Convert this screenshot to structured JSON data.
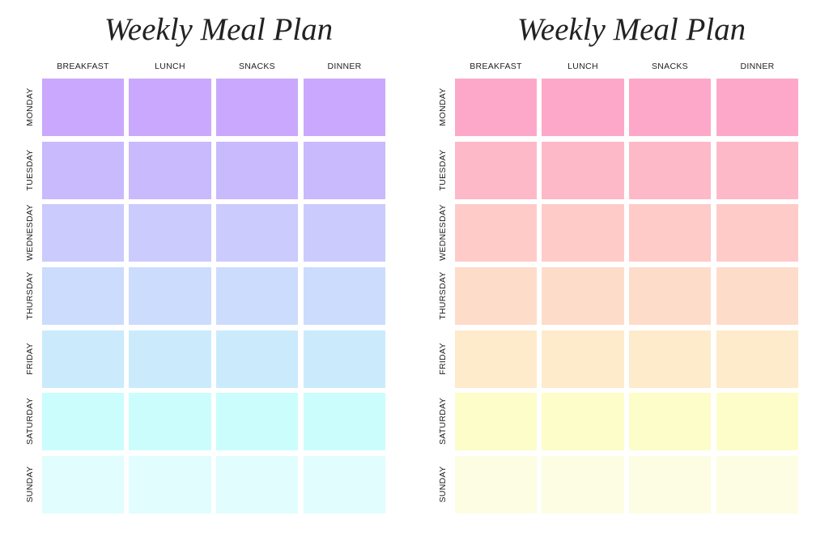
{
  "planners": [
    {
      "title": "Weekly Meal Plan",
      "columns": [
        "BREAKFAST",
        "LUNCH",
        "SNACKS",
        "DINNER"
      ],
      "days": [
        "MONDAY",
        "TUESDAY",
        "WEDNESDAY",
        "THURSDAY",
        "FRIDAY",
        "SATURDAY",
        "SUNDAY"
      ],
      "row_colors": [
        "#caa8fd",
        "#c9b9fd",
        "#cbcbfd",
        "#cbdcfd",
        "#cbebfd",
        "#cbfdfd",
        "#e2fdfd"
      ]
    },
    {
      "title": "Weekly Meal Plan",
      "columns": [
        "BREAKFAST",
        "LUNCH",
        "SNACKS",
        "DINNER"
      ],
      "days": [
        "MONDAY",
        "TUESDAY",
        "WEDNESDAY",
        "THURSDAY",
        "FRIDAY",
        "SATURDAY",
        "SUNDAY"
      ],
      "row_colors": [
        "#fea8c9",
        "#feb9c9",
        "#fecbc9",
        "#fedcca",
        "#feebcb",
        "#fdfdca",
        "#fdfde4"
      ]
    }
  ]
}
